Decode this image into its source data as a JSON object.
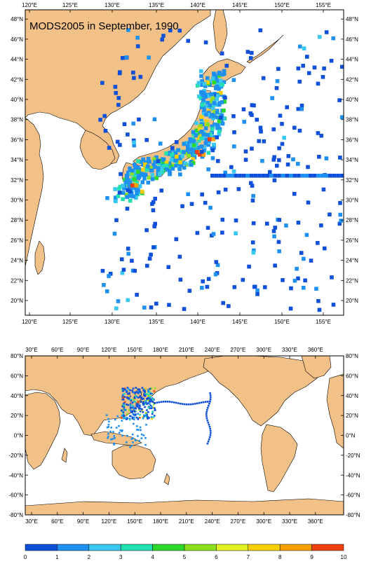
{
  "title": "MODS2005 in September, 1990",
  "colors": {
    "land": "#f2c188",
    "ocean": "#ffffff",
    "frame": "#000000"
  },
  "top_map": {
    "lon_range": [
      119,
      157
    ],
    "lat_range": [
      18.5,
      49.5
    ],
    "lon_ticks": [
      "120°E",
      "125°E",
      "130°E",
      "135°E",
      "140°E",
      "145°E",
      "150°E",
      "155°E"
    ],
    "lat_ticks": [
      "20°N",
      "22°N",
      "24°N",
      "26°N",
      "28°N",
      "30°N",
      "32°N",
      "34°N",
      "36°N",
      "38°N",
      "40°N",
      "42°N",
      "44°N",
      "46°N",
      "48°N"
    ]
  },
  "bottom_map": {
    "lon_ticks": [
      "30°E",
      "60°E",
      "90°E",
      "120°E",
      "150°E",
      "180°E",
      "210°E",
      "240°E",
      "270°E",
      "300°E",
      "330°E",
      "360°E"
    ],
    "lat_ticks": [
      "80°N",
      "60°N",
      "40°N",
      "20°N",
      "0°N",
      "-20°N",
      "-40°N",
      "-60°N",
      "-80°N"
    ]
  },
  "colorbar": {
    "labels": [
      "0",
      "1",
      "2",
      "3",
      "4",
      "5",
      "6",
      "7",
      "8",
      "9",
      "10"
    ],
    "colors": [
      "#1050d8",
      "#1e90f0",
      "#38c8f0",
      "#22e0b0",
      "#2cd82c",
      "#8ce020",
      "#e0f020",
      "#f8d000",
      "#f8a000",
      "#f04010"
    ]
  }
}
